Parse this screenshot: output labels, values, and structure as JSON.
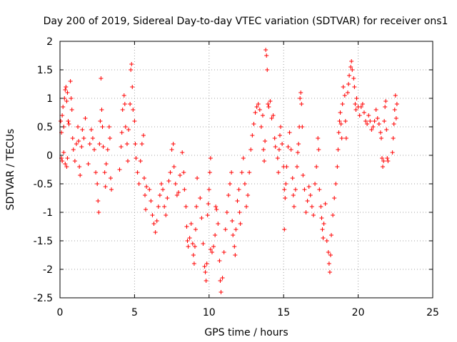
{
  "chart_data": {
    "type": "scatter",
    "title": "Day 200 of 2019, Sidereal Day-to-day VTEC variation (SDTVAR) for receiver ons1",
    "xlabel": "GPS time / hours",
    "ylabel": "SDTVAR / TECUs",
    "xlim": [
      0,
      25
    ],
    "ylim": [
      -2.5,
      2
    ],
    "xticks": [
      "0",
      "5",
      "10",
      "15",
      "20",
      "25"
    ],
    "yticks": [
      "-2.5",
      "-2",
      "-1.5",
      "-1",
      "-0.5",
      "0",
      "0.5",
      "1",
      "1.5",
      "2"
    ],
    "grid": true,
    "marker": "+",
    "color": "#ff0000",
    "series": [
      {
        "name": "SDTVAR",
        "points": [
          [
            0.05,
            0.6
          ],
          [
            0.1,
            0.4
          ],
          [
            0.15,
            0.7
          ],
          [
            0.2,
            0.85
          ],
          [
            0.25,
            0.5
          ],
          [
            0.3,
            1.0
          ],
          [
            0.35,
            1.15
          ],
          [
            0.4,
            1.2
          ],
          [
            0.45,
            0.95
          ],
          [
            0.5,
            1.1
          ],
          [
            0.55,
            0.6
          ],
          [
            0.6,
            0.55
          ],
          [
            0.1,
            -0.05
          ],
          [
            0.15,
            -0.1
          ],
          [
            0.25,
            0.05
          ],
          [
            0.35,
            -0.15
          ],
          [
            0.45,
            -0.2
          ],
          [
            0.5,
            -0.05
          ],
          [
            0.7,
            1.3
          ],
          [
            0.75,
            1.0
          ],
          [
            0.8,
            0.8
          ],
          [
            0.85,
            0.3
          ],
          [
            0.9,
            0.1
          ],
          [
            1.0,
            -0.1
          ],
          [
            1.1,
            0.2
          ],
          [
            1.2,
            0.5
          ],
          [
            1.25,
            0.25
          ],
          [
            1.3,
            -0.2
          ],
          [
            1.35,
            -0.35
          ],
          [
            1.45,
            0.15
          ],
          [
            1.5,
            0.45
          ],
          [
            1.6,
            0.3
          ],
          [
            1.7,
            0.65
          ],
          [
            1.9,
            -0.15
          ],
          [
            2.0,
            0.2
          ],
          [
            2.1,
            0.45
          ],
          [
            2.2,
            0.3
          ],
          [
            2.3,
            0.1
          ],
          [
            2.4,
            -0.3
          ],
          [
            2.5,
            -0.5
          ],
          [
            2.55,
            -0.8
          ],
          [
            2.6,
            -1.0
          ],
          [
            2.65,
            0.2
          ],
          [
            2.7,
            0.6
          ],
          [
            2.75,
            1.35
          ],
          [
            2.8,
            0.8
          ],
          [
            2.85,
            0.5
          ],
          [
            2.9,
            0.15
          ],
          [
            3.0,
            -0.3
          ],
          [
            3.05,
            -0.55
          ],
          [
            3.1,
            -0.15
          ],
          [
            3.2,
            0.1
          ],
          [
            3.3,
            0.5
          ],
          [
            3.35,
            0.3
          ],
          [
            3.4,
            -0.4
          ],
          [
            3.45,
            -0.6
          ],
          [
            4.0,
            -0.25
          ],
          [
            4.1,
            0.15
          ],
          [
            4.15,
            0.4
          ],
          [
            4.2,
            0.8
          ],
          [
            4.3,
            1.05
          ],
          [
            4.35,
            0.9
          ],
          [
            4.4,
            0.5
          ],
          [
            4.5,
            0.2
          ],
          [
            4.55,
            -0.1
          ],
          [
            4.6,
            0.45
          ],
          [
            4.7,
            0.9
          ],
          [
            4.75,
            1.5
          ],
          [
            4.8,
            1.6
          ],
          [
            4.85,
            1.2
          ],
          [
            4.9,
            0.8
          ],
          [
            5.0,
            0.6
          ],
          [
            5.05,
            0.2
          ],
          [
            5.1,
            -0.05
          ],
          [
            5.2,
            -0.3
          ],
          [
            5.3,
            -0.5
          ],
          [
            5.4,
            -0.1
          ],
          [
            5.5,
            0.2
          ],
          [
            5.6,
            0.35
          ],
          [
            5.65,
            -0.4
          ],
          [
            5.7,
            -0.7
          ],
          [
            5.75,
            -0.95
          ],
          [
            5.8,
            -0.55
          ],
          [
            6.0,
            -0.6
          ],
          [
            6.1,
            -0.8
          ],
          [
            6.2,
            -1.05
          ],
          [
            6.3,
            -1.2
          ],
          [
            6.4,
            -1.35
          ],
          [
            6.5,
            -1.15
          ],
          [
            6.6,
            -0.9
          ],
          [
            6.7,
            -0.7
          ],
          [
            6.8,
            -0.5
          ],
          [
            6.9,
            -0.6
          ],
          [
            7.0,
            -0.9
          ],
          [
            7.1,
            -1.05
          ],
          [
            7.2,
            -0.75
          ],
          [
            7.3,
            -0.45
          ],
          [
            7.4,
            -0.3
          ],
          [
            7.5,
            0.1
          ],
          [
            7.6,
            0.2
          ],
          [
            7.65,
            -0.2
          ],
          [
            7.75,
            -0.5
          ],
          [
            7.85,
            -0.7
          ],
          [
            7.95,
            -0.65
          ],
          [
            8.05,
            -0.35
          ],
          [
            8.2,
            0.05
          ],
          [
            8.3,
            -0.3
          ],
          [
            8.35,
            -0.6
          ],
          [
            8.45,
            -0.9
          ],
          [
            8.5,
            -1.25
          ],
          [
            8.55,
            -1.5
          ],
          [
            8.6,
            -1.6
          ],
          [
            8.7,
            -1.45
          ],
          [
            8.8,
            -1.2
          ],
          [
            8.9,
            -1.55
          ],
          [
            8.95,
            -1.75
          ],
          [
            9.0,
            -1.9
          ],
          [
            9.05,
            -1.6
          ],
          [
            9.1,
            -1.3
          ],
          [
            9.15,
            -0.9
          ],
          [
            9.2,
            -0.4
          ],
          [
            9.4,
            -0.75
          ],
          [
            9.5,
            -1.1
          ],
          [
            9.6,
            -1.55
          ],
          [
            9.7,
            -1.95
          ],
          [
            9.75,
            -2.05
          ],
          [
            9.8,
            -2.2
          ],
          [
            9.85,
            -1.9
          ],
          [
            9.9,
            -1.05
          ],
          [
            9.95,
            -0.85
          ],
          [
            10.0,
            -0.6
          ],
          [
            10.05,
            -0.3
          ],
          [
            10.1,
            -0.05
          ],
          [
            10.1,
            -1.65
          ],
          [
            10.2,
            -1.7
          ],
          [
            10.3,
            -1.6
          ],
          [
            10.4,
            -1.4
          ],
          [
            10.45,
            -0.9
          ],
          [
            10.5,
            -0.95
          ],
          [
            10.6,
            -1.2
          ],
          [
            10.7,
            -1.85
          ],
          [
            10.75,
            -2.2
          ],
          [
            10.8,
            -2.4
          ],
          [
            10.9,
            -2.15
          ],
          [
            11.0,
            -1.7
          ],
          [
            11.1,
            -1.3
          ],
          [
            11.2,
            -1.0
          ],
          [
            11.3,
            -0.7
          ],
          [
            11.4,
            -0.5
          ],
          [
            11.5,
            -0.3
          ],
          [
            11.55,
            -1.15
          ],
          [
            11.6,
            -1.4
          ],
          [
            11.7,
            -1.6
          ],
          [
            11.75,
            -1.75
          ],
          [
            11.8,
            -1.3
          ],
          [
            11.9,
            -0.8
          ],
          [
            12.0,
            -0.6
          ],
          [
            12.05,
            -1.0
          ],
          [
            12.1,
            -1.2
          ],
          [
            12.2,
            -0.3
          ],
          [
            12.3,
            -0.05
          ],
          [
            12.4,
            -0.5
          ],
          [
            12.5,
            -0.9
          ],
          [
            12.6,
            -0.7
          ],
          [
            12.7,
            -0.3
          ],
          [
            12.8,
            0.1
          ],
          [
            12.9,
            0.35
          ],
          [
            13.0,
            0.55
          ],
          [
            13.1,
            0.75
          ],
          [
            13.2,
            0.85
          ],
          [
            13.3,
            0.9
          ],
          [
            13.4,
            0.8
          ],
          [
            13.5,
            0.5
          ],
          [
            13.6,
            0.7
          ],
          [
            13.65,
            0.1
          ],
          [
            13.7,
            -0.1
          ],
          [
            13.75,
            0.25
          ],
          [
            13.8,
            1.85
          ],
          [
            13.85,
            1.75
          ],
          [
            13.9,
            1.5
          ],
          [
            13.95,
            0.9
          ],
          [
            14.0,
            0.85
          ],
          [
            14.1,
            0.95
          ],
          [
            14.2,
            0.65
          ],
          [
            14.3,
            0.7
          ],
          [
            14.4,
            0.3
          ],
          [
            14.45,
            0.15
          ],
          [
            14.6,
            -0.05
          ],
          [
            14.65,
            -0.3
          ],
          [
            14.7,
            0.1
          ],
          [
            14.75,
            0.35
          ],
          [
            14.8,
            0.5
          ],
          [
            14.9,
            0.2
          ],
          [
            15.0,
            -0.2
          ],
          [
            15.05,
            -0.6
          ],
          [
            15.1,
            -0.75
          ],
          [
            15.15,
            -0.5
          ],
          [
            15.2,
            -0.2
          ],
          [
            15.3,
            0.15
          ],
          [
            15.4,
            0.4
          ],
          [
            15.5,
            0.1
          ],
          [
            15.6,
            -0.4
          ],
          [
            15.65,
            -0.7
          ],
          [
            15.7,
            -0.9
          ],
          [
            15.8,
            -0.6
          ],
          [
            15.9,
            -0.2
          ],
          [
            15.95,
            0.05
          ],
          [
            16.0,
            0.2
          ],
          [
            16.05,
            0.5
          ],
          [
            16.1,
            1.0
          ],
          [
            16.15,
            1.1
          ],
          [
            16.2,
            0.9
          ],
          [
            16.25,
            0.5
          ],
          [
            15.05,
            -1.3
          ],
          [
            16.3,
            -0.35
          ],
          [
            16.4,
            -0.6
          ],
          [
            16.5,
            -1.0
          ],
          [
            16.6,
            -0.8
          ],
          [
            16.7,
            -0.55
          ],
          [
            16.8,
            -0.7
          ],
          [
            16.9,
            -0.9
          ],
          [
            17.0,
            -1.05
          ],
          [
            17.1,
            -0.5
          ],
          [
            17.2,
            -0.2
          ],
          [
            17.3,
            0.3
          ],
          [
            17.35,
            0.1
          ],
          [
            17.4,
            -0.6
          ],
          [
            17.5,
            -0.9
          ],
          [
            17.55,
            -1.1
          ],
          [
            17.6,
            -1.3
          ],
          [
            17.65,
            -1.45
          ],
          [
            17.7,
            -1.2
          ],
          [
            17.8,
            -0.85
          ],
          [
            17.9,
            -1.5
          ],
          [
            18.0,
            -1.7
          ],
          [
            18.05,
            -1.9
          ],
          [
            18.1,
            -2.05
          ],
          [
            18.15,
            -1.75
          ],
          [
            18.2,
            -1.4
          ],
          [
            18.3,
            -1.05
          ],
          [
            18.4,
            -0.75
          ],
          [
            18.5,
            -0.5
          ],
          [
            18.6,
            -0.2
          ],
          [
            18.65,
            0.1
          ],
          [
            18.7,
            0.4
          ],
          [
            18.75,
            0.6
          ],
          [
            18.8,
            0.75
          ],
          [
            18.85,
            0.55
          ],
          [
            18.9,
            0.3
          ],
          [
            18.95,
            0.9
          ],
          [
            19.0,
            1.2
          ],
          [
            19.1,
            1.05
          ],
          [
            19.15,
            0.6
          ],
          [
            19.2,
            0.3
          ],
          [
            19.3,
            1.1
          ],
          [
            19.35,
            1.25
          ],
          [
            19.4,
            1.4
          ],
          [
            19.5,
            1.55
          ],
          [
            19.55,
            1.65
          ],
          [
            19.6,
            1.5
          ],
          [
            19.7,
            1.35
          ],
          [
            19.75,
            1.2
          ],
          [
            19.8,
            0.9
          ],
          [
            19.85,
            0.8
          ],
          [
            19.9,
            1.0
          ],
          [
            20.0,
            0.85
          ],
          [
            20.1,
            0.7
          ],
          [
            20.2,
            0.85
          ],
          [
            20.3,
            0.9
          ],
          [
            20.4,
            0.75
          ],
          [
            20.5,
            0.6
          ],
          [
            20.6,
            0.55
          ],
          [
            20.7,
            0.7
          ],
          [
            20.8,
            0.6
          ],
          [
            20.9,
            0.45
          ],
          [
            21.0,
            0.5
          ],
          [
            21.1,
            0.6
          ],
          [
            21.2,
            0.8
          ],
          [
            21.3,
            0.65
          ],
          [
            21.4,
            0.55
          ],
          [
            21.5,
            0.4
          ],
          [
            21.55,
            0.3
          ],
          [
            21.6,
            -0.05
          ],
          [
            21.65,
            -0.2
          ],
          [
            21.7,
            -0.1
          ],
          [
            21.75,
            0.6
          ],
          [
            21.8,
            0.85
          ],
          [
            21.85,
            0.95
          ],
          [
            21.9,
            0.45
          ],
          [
            21.95,
            -0.05
          ],
          [
            22.0,
            -0.1
          ],
          [
            22.3,
            0.05
          ],
          [
            22.35,
            0.3
          ],
          [
            22.4,
            0.55
          ],
          [
            22.45,
            0.8
          ],
          [
            22.5,
            1.05
          ],
          [
            22.55,
            0.65
          ],
          [
            22.6,
            0.9
          ]
        ]
      }
    ]
  }
}
